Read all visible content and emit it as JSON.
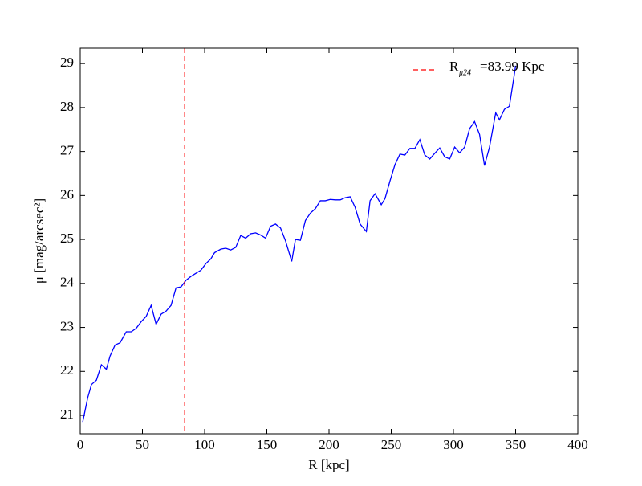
{
  "chart_data": {
    "type": "line",
    "xlabel": "R [kpc]",
    "ylabel": "μ [mag/arcsec²]",
    "xlim": [
      0,
      400
    ],
    "ylim": [
      20.58,
      29.35
    ],
    "xticks": [
      0,
      50,
      100,
      150,
      200,
      250,
      300,
      350,
      400
    ],
    "yticks": [
      21,
      22,
      23,
      24,
      25,
      26,
      27,
      28,
      29
    ],
    "legend": "upper right",
    "series": [
      {
        "color": "#0000ff",
        "x": [
          2,
          6,
          9,
          13,
          17,
          21,
          24,
          28,
          32,
          37,
          41,
          45,
          49,
          53,
          57,
          61,
          65,
          69,
          73,
          77,
          81,
          85,
          89,
          93,
          97,
          101,
          105,
          108,
          113,
          117,
          121,
          125,
          129,
          133,
          137,
          141,
          145,
          149,
          153,
          157,
          161,
          165,
          170,
          173,
          177,
          181,
          185,
          189,
          193,
          197,
          201,
          205,
          209,
          213,
          217,
          221,
          225,
          230,
          233,
          237,
          242,
          245,
          249,
          253,
          257,
          261,
          265,
          269,
          273,
          277,
          281,
          285,
          289,
          293,
          297,
          301,
          305,
          309,
          313,
          317,
          321,
          325,
          329,
          334,
          337,
          341,
          345,
          349,
          350
        ],
        "values": [
          20.85,
          21.4,
          21.7,
          21.8,
          22.15,
          22.05,
          22.35,
          22.6,
          22.65,
          22.9,
          22.9,
          22.98,
          23.13,
          23.25,
          23.5,
          23.07,
          23.3,
          23.37,
          23.5,
          23.9,
          23.92,
          24.07,
          24.16,
          24.23,
          24.3,
          24.45,
          24.56,
          24.7,
          24.78,
          24.8,
          24.76,
          24.82,
          25.09,
          25.03,
          25.13,
          25.15,
          25.1,
          25.03,
          25.3,
          25.35,
          25.26,
          24.97,
          24.5,
          25.0,
          24.98,
          25.43,
          25.6,
          25.7,
          25.88,
          25.88,
          25.91,
          25.9,
          25.9,
          25.95,
          25.97,
          25.73,
          25.35,
          25.18,
          25.88,
          26.04,
          25.79,
          25.93,
          26.33,
          26.7,
          26.94,
          26.92,
          27.07,
          27.07,
          27.27,
          26.92,
          26.83,
          26.96,
          27.08,
          26.88,
          26.83,
          27.1,
          26.97,
          27.1,
          27.52,
          27.68,
          27.39,
          26.68,
          27.1,
          27.88,
          27.72,
          27.96,
          28.03,
          28.76,
          28.95
        ]
      }
    ],
    "reference_line": {
      "x": 83.99,
      "color": "#ff0000",
      "name": "R",
      "subscript": "μ24",
      "suffix": "=83.99 Kpc"
    }
  }
}
